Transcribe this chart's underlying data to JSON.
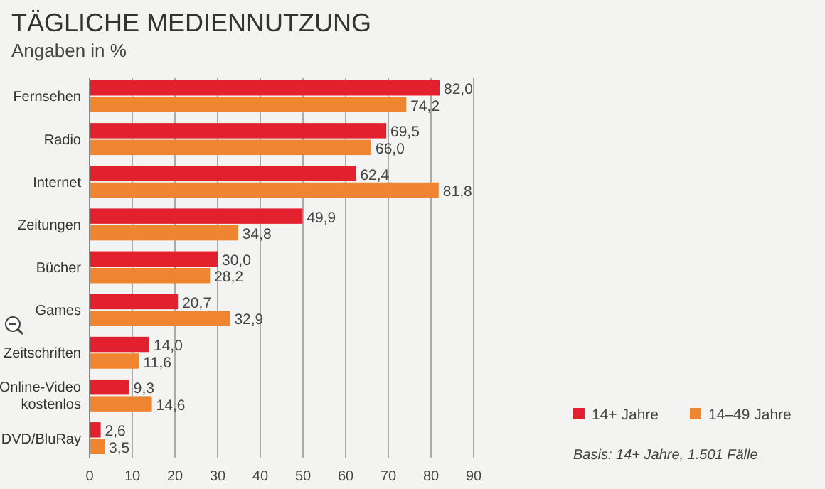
{
  "chart_data": {
    "type": "bar",
    "orientation": "horizontal",
    "title": "TÄGLICHE MEDIENNUTZUNG",
    "subtitle": "Angaben in %",
    "categories": [
      "Fernsehen",
      "Radio",
      "Internet",
      "Zeitungen",
      "Bücher",
      "Games",
      "Zeitschriften",
      "Online-Video\nkostenlos",
      "DVD/BluRay"
    ],
    "series": [
      {
        "name": "14+ Jahre",
        "color": "#e3202e",
        "values": [
          82.0,
          69.5,
          62.4,
          49.9,
          30.0,
          20.7,
          14.0,
          9.3,
          2.6
        ],
        "value_labels": [
          "82,0",
          "69,5",
          "62,4",
          "49,9",
          "30,0",
          "20,7",
          "14,0",
          "9,3",
          "2,6"
        ]
      },
      {
        "name": "14–49 Jahre",
        "color": "#ef8530",
        "values": [
          74.2,
          66.0,
          81.8,
          34.8,
          28.2,
          32.9,
          11.6,
          14.6,
          3.5
        ],
        "value_labels": [
          "74,2",
          "66,0",
          "81,8",
          "34,8",
          "28,2",
          "32,9",
          "11,6",
          "14,6",
          "3,5"
        ]
      }
    ],
    "xlim": [
      0,
      90
    ],
    "xticks": [
      0,
      10,
      20,
      30,
      40,
      50,
      60,
      70,
      80,
      90
    ],
    "grid": "x",
    "legend": "bottom right",
    "annotations": [
      "Basis: 14+ Jahre, 1.501 Fälle"
    ]
  }
}
